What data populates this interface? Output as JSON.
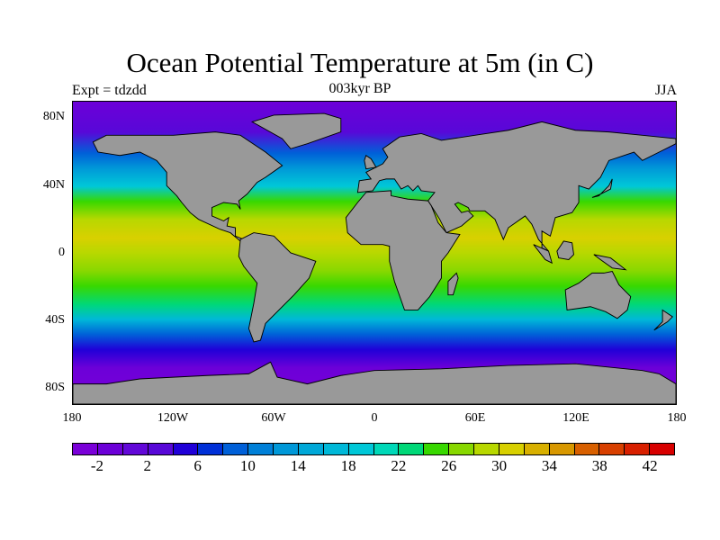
{
  "title": "Ocean Potential Temperature at 5m (in C)",
  "subtitle_left": "Expt = tdzdd",
  "subtitle_center": "003kyr BP",
  "subtitle_right": "JJA",
  "lat_labels": [
    "80N",
    "40N",
    "0",
    "40S",
    "80S"
  ],
  "lon_labels": [
    "180",
    "120W",
    "60W",
    "0",
    "60E",
    "120E",
    "180"
  ],
  "colorbar": {
    "labels": [
      "-2",
      "2",
      "6",
      "10",
      "14",
      "18",
      "22",
      "26",
      "30",
      "34",
      "38",
      "42"
    ],
    "colors": [
      "#7a00d8",
      "#6c00d8",
      "#6208d8",
      "#5808d8",
      "#2000d8",
      "#0030d8",
      "#0060d8",
      "#0080d8",
      "#0098d8",
      "#00a8d8",
      "#00b8d8",
      "#00c8d8",
      "#00d8b8",
      "#00d878",
      "#38d800",
      "#88d800",
      "#b8d800",
      "#d8d000",
      "#d8b000",
      "#d89800",
      "#d86000",
      "#d84000",
      "#d82000",
      "#d80000"
    ]
  },
  "colors": {
    "land": "#999999"
  }
}
